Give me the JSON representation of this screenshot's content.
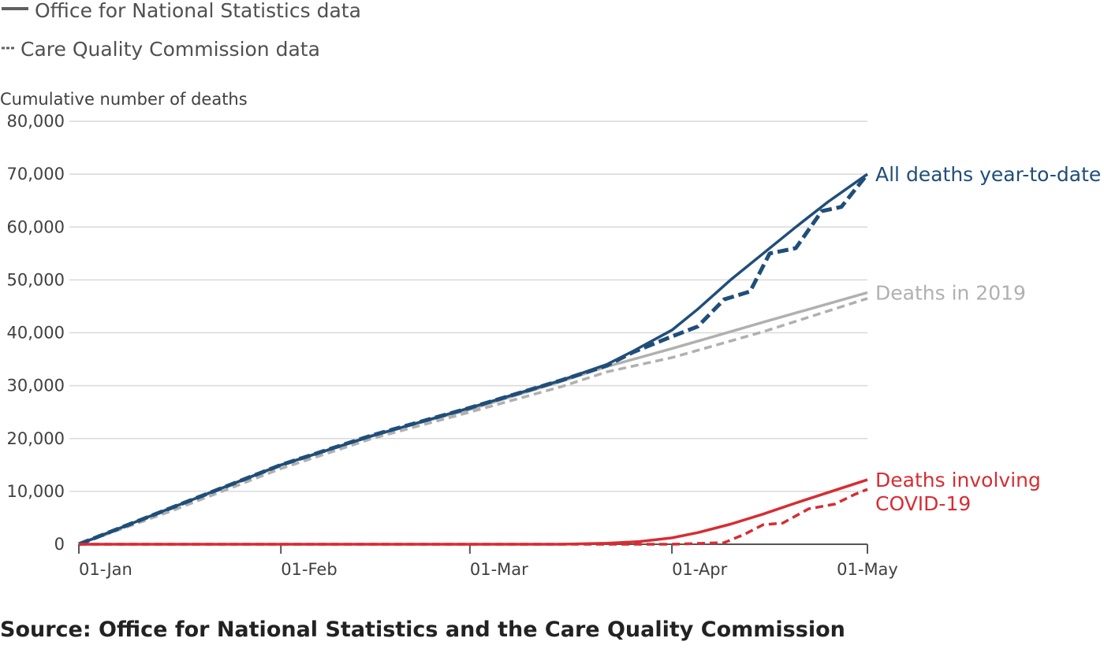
{
  "legend": {
    "solid_label": "Office for National Statistics data",
    "dashed_label": "Care Quality Commission data"
  },
  "source": "Source: Office for National Statistics and the Care Quality Commission",
  "colors": {
    "all_deaths": "#1f4e79",
    "deaths_2019": "#b0b0b0",
    "covid": "#d62d33",
    "grid": "#d9d9d9",
    "axis": "#555555",
    "legend_line": "#606060"
  },
  "chart_data": {
    "type": "line",
    "ylabel": "Cumulative number of deaths",
    "xlabel": "",
    "ylim": [
      0,
      80000
    ],
    "yticks": [
      0,
      10000,
      20000,
      30000,
      40000,
      50000,
      60000,
      70000,
      80000
    ],
    "ytick_labels": [
      "0",
      "10,000",
      "20,000",
      "30,000",
      "40,000",
      "50,000",
      "60,000",
      "70,000",
      "80,000"
    ],
    "xlim": [
      "2020-01-01",
      "2020-05-01"
    ],
    "xticks": [
      "2020-01-01",
      "2020-02-01",
      "2020-03-01",
      "2020-04-01",
      "2020-05-01"
    ],
    "xtick_labels": [
      "01-Jan",
      "01-Feb",
      "01-Mar",
      "01-Apr",
      "01-May"
    ],
    "grid": "horizontal",
    "series": [
      {
        "name": "Deaths in 2019",
        "source": "ONS",
        "style": "solid",
        "x": [
          "2020-01-01",
          "2020-01-15",
          "2020-02-01",
          "2020-02-15",
          "2020-03-01",
          "2020-03-15",
          "2020-03-22",
          "2020-04-01",
          "2020-04-15",
          "2020-05-01"
        ],
        "y": [
          0,
          6800,
          14900,
          20600,
          25500,
          30800,
          33600,
          37000,
          42000,
          47600
        ]
      },
      {
        "name": "Deaths in 2019",
        "source": "CQC",
        "style": "dashed",
        "x": [
          "2020-01-01",
          "2020-01-15",
          "2020-02-01",
          "2020-02-15",
          "2020-03-01",
          "2020-03-15",
          "2020-03-22",
          "2020-04-01",
          "2020-04-15",
          "2020-05-01"
        ],
        "y": [
          0,
          6200,
          14300,
          20000,
          25000,
          29800,
          32600,
          35300,
          40200,
          46500
        ]
      },
      {
        "name": "All deaths year-to-date",
        "source": "ONS",
        "style": "solid",
        "x": [
          "2020-01-01",
          "2020-01-15",
          "2020-02-01",
          "2020-02-15",
          "2020-03-01",
          "2020-03-15",
          "2020-03-22",
          "2020-03-26",
          "2020-04-01",
          "2020-04-05",
          "2020-04-10",
          "2020-04-15",
          "2020-04-20",
          "2020-04-25",
          "2020-05-01"
        ],
        "y": [
          0,
          6800,
          15000,
          20500,
          25800,
          31000,
          34000,
          36500,
          40500,
          44500,
          50000,
          55000,
          60000,
          64800,
          70000
        ]
      },
      {
        "name": "All deaths year-to-date",
        "source": "CQC",
        "style": "dashed",
        "x": [
          "2020-01-01",
          "2020-01-15",
          "2020-02-01",
          "2020-02-15",
          "2020-03-01",
          "2020-03-15",
          "2020-03-22",
          "2020-03-26",
          "2020-04-01",
          "2020-04-05",
          "2020-04-09",
          "2020-04-13",
          "2020-04-16",
          "2020-04-20",
          "2020-04-24",
          "2020-04-27",
          "2020-05-01"
        ],
        "y": [
          0,
          6800,
          15000,
          20600,
          25800,
          31000,
          33800,
          36300,
          39300,
          41200,
          46300,
          47800,
          55000,
          56000,
          63000,
          63800,
          70000
        ]
      },
      {
        "name": "Deaths involving COVID-19",
        "source": "ONS",
        "style": "solid",
        "x": [
          "2020-01-01",
          "2020-03-15",
          "2020-03-22",
          "2020-03-27",
          "2020-04-01",
          "2020-04-05",
          "2020-04-10",
          "2020-04-15",
          "2020-04-20",
          "2020-04-25",
          "2020-05-01"
        ],
        "y": [
          0,
          0,
          200,
          500,
          1200,
          2200,
          3800,
          5700,
          7800,
          9800,
          12200
        ]
      },
      {
        "name": "Deaths involving COVID-19",
        "source": "CQC",
        "style": "dashed",
        "x": [
          "2020-01-01",
          "2020-04-01",
          "2020-04-09",
          "2020-04-12",
          "2020-04-15",
          "2020-04-18",
          "2020-04-22",
          "2020-04-26",
          "2020-04-29",
          "2020-05-01"
        ],
        "y": [
          0,
          0,
          300,
          1800,
          3700,
          4000,
          6700,
          7600,
          9400,
          10400
        ]
      }
    ],
    "series_labels": [
      {
        "lines": [
          "All deaths year-to-date"
        ],
        "color_key": "all_deaths",
        "at_value": 70000
      },
      {
        "lines": [
          "Deaths in 2019"
        ],
        "color_key": "deaths_2019",
        "at_value": 47600
      },
      {
        "lines": [
          "Deaths involving",
          "COVID-19"
        ],
        "color_key": "covid",
        "at_value": 12200
      }
    ]
  }
}
